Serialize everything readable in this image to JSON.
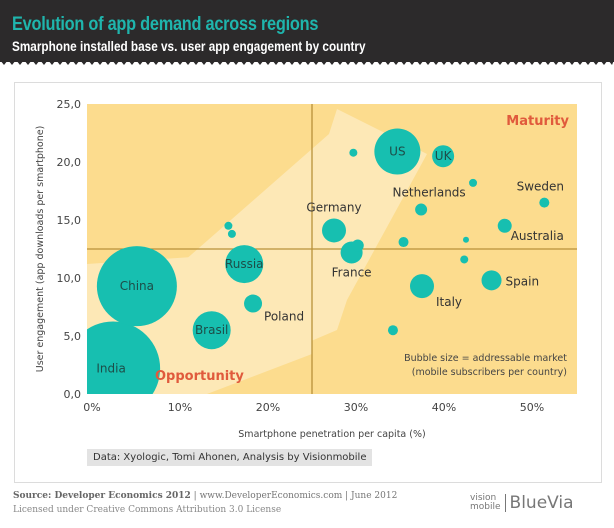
{
  "header": {
    "title": "Evolution of app demand across regions",
    "subtitle": "Smarphone installed base vs. user app engagement by country"
  },
  "chart_data": {
    "type": "scatter",
    "title": "Evolution of app demand across regions",
    "subtitle": "Smarphone installed base vs. user app engagement by country",
    "xlabel": "Smartphone penetration per capita (%)",
    "ylabel": "User engagement (app downloads per smartphone)",
    "xlim": [
      0,
      55
    ],
    "ylim": [
      0,
      25
    ],
    "x_ticks": [
      0,
      10,
      20,
      30,
      40,
      50
    ],
    "x_tick_labels": [
      "0%",
      "10%",
      "20%",
      "30%",
      "40%",
      "50%"
    ],
    "y_ticks": [
      0,
      5,
      10,
      15,
      20,
      25
    ],
    "y_tick_labels": [
      "0,0",
      "5,0",
      "10,0",
      "15,0",
      "20,0",
      "25,0"
    ],
    "grid": false,
    "quadrant_dividers": {
      "x": 25,
      "y": 12.5
    },
    "quadrant_labels": [
      {
        "text": "Maturity",
        "position": "top-right"
      },
      {
        "text": "Opportunity",
        "position": "bottom-left"
      }
    ],
    "size_note": [
      "Bubble size = addressable market",
      "(mobile subscribers per country)"
    ],
    "points": [
      {
        "label": "India",
        "x": 2.4,
        "y": 2.2,
        "size": 47,
        "label_pos": "inside"
      },
      {
        "label": "China",
        "x": 5.1,
        "y": 9.3,
        "size": 40,
        "label_pos": "inside"
      },
      {
        "label": "Brasil",
        "x": 13.6,
        "y": 5.5,
        "size": 19,
        "label_pos": "inside"
      },
      {
        "label": "Russia",
        "x": 17.3,
        "y": 11.2,
        "size": 19,
        "label_pos": "inside"
      },
      {
        "label": "Poland",
        "x": 18.3,
        "y": 7.8,
        "size": 9,
        "label_pos": "below-right"
      },
      {
        "label": "",
        "x": 15.5,
        "y": 14.5,
        "size": 4
      },
      {
        "label": "",
        "x": 15.9,
        "y": 13.8,
        "size": 4
      },
      {
        "label": "Germany",
        "x": 27.5,
        "y": 14.1,
        "size": 12,
        "label_pos": "above"
      },
      {
        "label": "France",
        "x": 29.5,
        "y": 12.2,
        "size": 11,
        "label_pos": "below"
      },
      {
        "label": "",
        "x": 30.2,
        "y": 12.8,
        "size": 6
      },
      {
        "label": "",
        "x": 29.7,
        "y": 20.8,
        "size": 4
      },
      {
        "label": "US",
        "x": 34.7,
        "y": 20.9,
        "size": 23,
        "label_pos": "inside"
      },
      {
        "label": "UK",
        "x": 39.9,
        "y": 20.5,
        "size": 11,
        "label_pos": "inside"
      },
      {
        "label": "",
        "x": 43.3,
        "y": 18.2,
        "size": 4
      },
      {
        "label": "Netherlands",
        "x": 37.4,
        "y": 15.9,
        "size": 6,
        "label_pos": "above"
      },
      {
        "label": "Sweden",
        "x": 51.4,
        "y": 16.5,
        "size": 5,
        "label_pos": "above"
      },
      {
        "label": "Australia",
        "x": 46.9,
        "y": 14.5,
        "size": 7,
        "label_pos": "below-right"
      },
      {
        "label": "",
        "x": 35.4,
        "y": 13.1,
        "size": 5
      },
      {
        "label": "",
        "x": 42.5,
        "y": 13.3,
        "size": 3
      },
      {
        "label": "",
        "x": 42.3,
        "y": 11.6,
        "size": 4
      },
      {
        "label": "Italy",
        "x": 37.5,
        "y": 9.3,
        "size": 12,
        "label_pos": "below-right"
      },
      {
        "label": "Spain",
        "x": 45.4,
        "y": 9.8,
        "size": 10,
        "label_pos": "right"
      },
      {
        "label": "",
        "x": 34.2,
        "y": 5.5,
        "size": 5
      }
    ]
  },
  "data_source": "Data: Xyologic, Tomi Ahonen, Analysis by Visionmobile",
  "footer": {
    "source_bold": "Source: Developer Economics 2012",
    "source_rest": " | www.DeveloperEconomics.com | June 2012",
    "license": "Licensed under Creative Commons Attribution 3.0 License",
    "logo_vision": "vision",
    "logo_mobile": "mobile",
    "logo_bluevia": "BlueVia"
  },
  "colors": {
    "header_bg": "#2c2a2b",
    "title": "#1fb5ad",
    "bubble": "#17bfb0",
    "plot_dark": "#fcdc8e",
    "plot_light": "#fde8b6",
    "divider": "#b8913a",
    "quadrant_label": "#e05a3c"
  }
}
